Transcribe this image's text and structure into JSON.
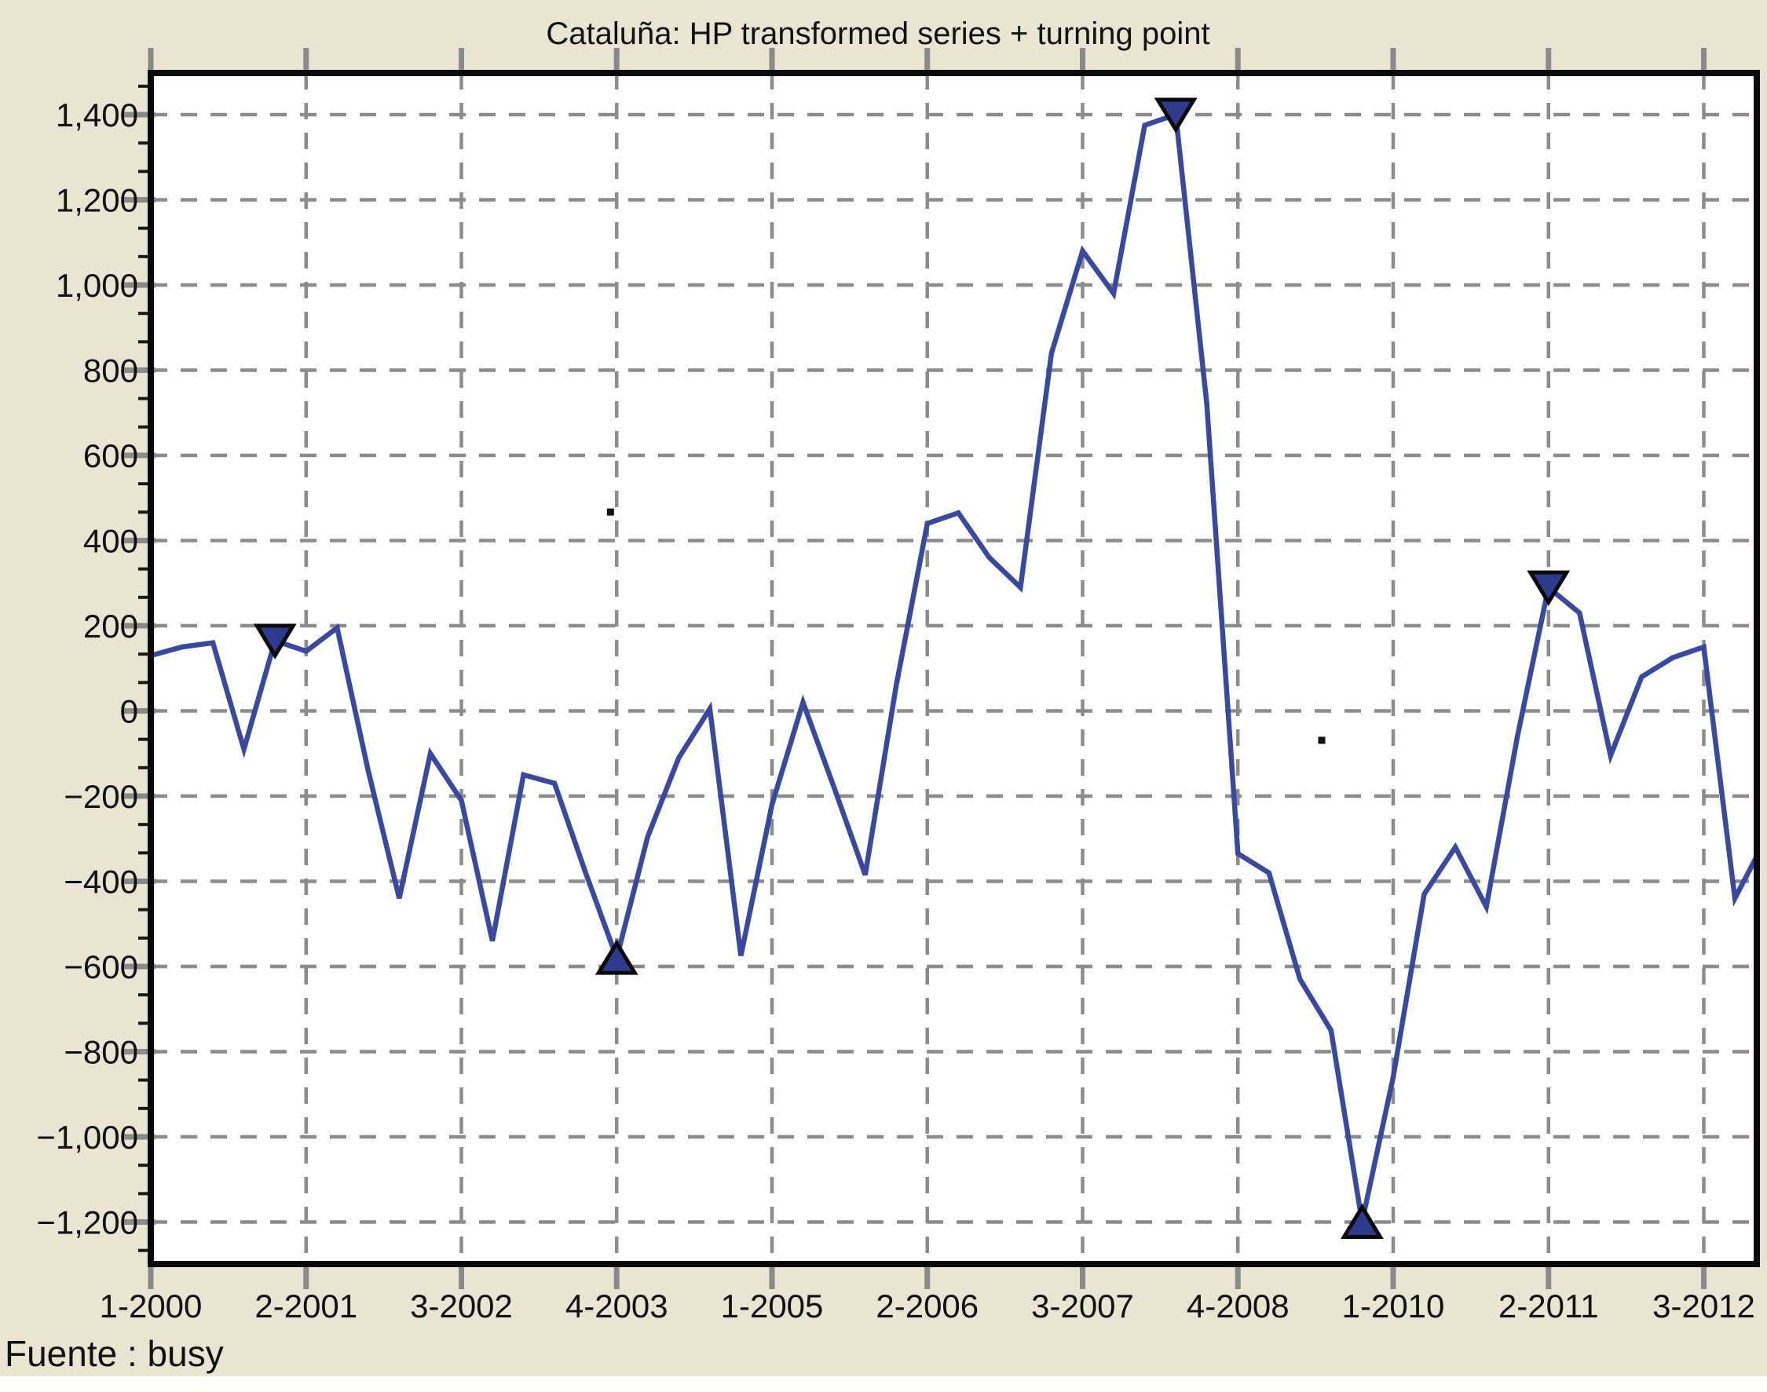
{
  "ui": {
    "title": "Cataluña: HP transformed series + turning point",
    "source_note": "Fuente : busy"
  },
  "colors": {
    "page_background": "#e9e5d2",
    "plot_background": "#ffffff",
    "plot_border": "#0a0a0a",
    "gridline": "#8c8c8c",
    "major_tick": "#8a8a8a",
    "minor_tick": "#1a1a1a",
    "series_line": "#3a49a0",
    "marker_fill": "#2e3a8c",
    "marker_edge": "#0a0a0a",
    "text": "#111111",
    "speck": "#111111"
  },
  "chart_data": {
    "type": "line",
    "title": "Cataluña: HP transformed series + turning point",
    "xlabel": "",
    "ylabel": "",
    "grid": true,
    "legend_position": "none",
    "ylim": [
      -1300,
      1500
    ],
    "y_ticks": [
      1400,
      1200,
      1000,
      800,
      600,
      400,
      200,
      0,
      -200,
      -400,
      -600,
      -800,
      -1000,
      -1200
    ],
    "y_tick_labels": [
      "1,400",
      "1,200",
      "1,000",
      "800",
      "600",
      "400",
      "200",
      "0",
      "−200",
      "−400",
      "−600",
      "−800",
      "−1,000",
      "−1,200"
    ],
    "x_unit": "quarter-index from 1-2000",
    "xlim_quarters": [
      0,
      51.7
    ],
    "x_tick_quarters": [
      0,
      5,
      10,
      15,
      20,
      25,
      30,
      35,
      40,
      45,
      50
    ],
    "x_tick_labels": [
      "1-2000",
      "2-2001",
      "3-2002",
      "4-2003",
      "1-2005",
      "2-2006",
      "3-2007",
      "4-2008",
      "1-2010",
      "2-2011",
      "3-2012"
    ],
    "series": [
      {
        "name": "HP transformed series",
        "quarter_start": 0,
        "values": [
          130,
          150,
          160,
          -90,
          165,
          140,
          195,
          -140,
          -440,
          -100,
          -210,
          -540,
          -150,
          -170,
          -380,
          -580,
          -295,
          -110,
          5,
          -575,
          -220,
          20,
          -180,
          -385,
          60,
          440,
          465,
          360,
          290,
          840,
          1080,
          980,
          1375,
          1400,
          720,
          -335,
          -380,
          -630,
          -750,
          -1200,
          -860,
          -430,
          -320,
          -460,
          -60,
          290,
          230,
          -105,
          80,
          125,
          150,
          -440,
          -300
        ]
      }
    ],
    "turning_points": [
      {
        "quarter": 4,
        "value": 165,
        "type": "peak"
      },
      {
        "quarter": 15,
        "value": -580,
        "type": "trough"
      },
      {
        "quarter": 33,
        "value": 1400,
        "type": "peak"
      },
      {
        "quarter": 39,
        "value": -1200,
        "type": "trough"
      },
      {
        "quarter": 45,
        "value": 290,
        "type": "peak"
      }
    ],
    "specks": [
      {
        "quarter": 14.8,
        "value": 467
      },
      {
        "quarter": 37.7,
        "value": -69
      }
    ]
  }
}
